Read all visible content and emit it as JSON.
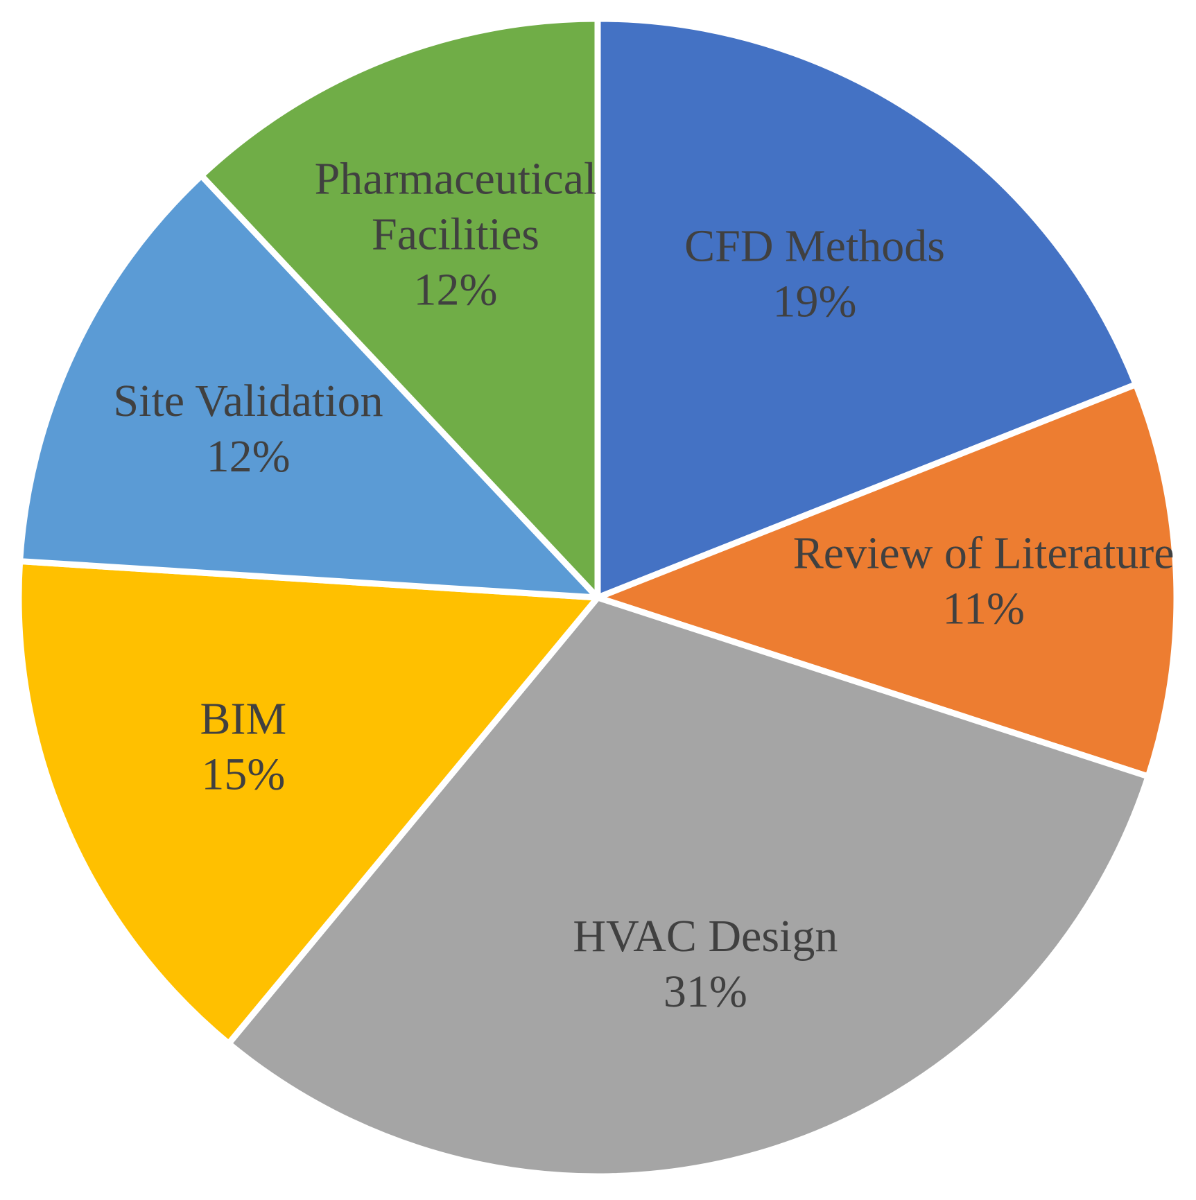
{
  "chart_data": {
    "type": "pie",
    "title": "",
    "start_angle_deg": 0,
    "direction": "clockwise",
    "slices": [
      {
        "label": [
          "CFD Methods"
        ],
        "value": 19,
        "value_label": "19%",
        "color": "#4472C4"
      },
      {
        "label": [
          "Review of Literature"
        ],
        "value": 11,
        "value_label": "11%",
        "color": "#ED7D31"
      },
      {
        "label": [
          "HVAC Design"
        ],
        "value": 31,
        "value_label": "31%",
        "color": "#A5A5A5"
      },
      {
        "label": [
          "BIM"
        ],
        "value": 15,
        "value_label": "15%",
        "color": "#FFC000"
      },
      {
        "label": [
          "Site Validation"
        ],
        "value": 12,
        "value_label": "12%",
        "color": "#5B9BD5"
      },
      {
        "label": [
          "Pharmaceutical",
          "Facilities"
        ],
        "value": 12,
        "value_label": "12%",
        "color": "#70AD47"
      }
    ],
    "legend": "none",
    "label_color": "#404040",
    "border_color": "#FFFFFF"
  }
}
